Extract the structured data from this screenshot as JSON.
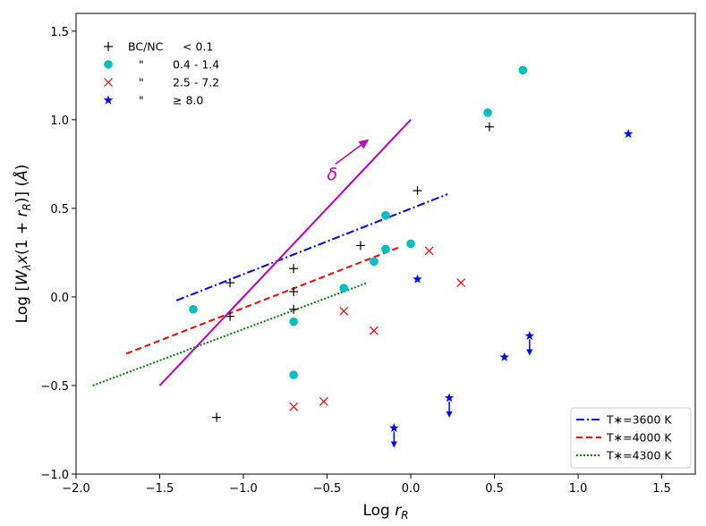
{
  "chart_data": {
    "type": "scatter",
    "xlabel": "Log r_R",
    "ylabel": "Log [W_λx(1 + r_R)] (Å)",
    "xlim": [
      -2.0,
      1.7
    ],
    "ylim": [
      -1.0,
      1.6
    ],
    "xticks": [
      "−2.0",
      "−1.5",
      "−1.0",
      "−0.5",
      "0.0",
      "0.5",
      "1.0",
      "1.5"
    ],
    "yticks": [
      "−1.0",
      "−0.5",
      "0.0",
      "0.5",
      "1.0",
      "1.5"
    ],
    "xtick_values": [
      -2.0,
      -1.5,
      -1.0,
      -0.5,
      0.0,
      0.5,
      1.0,
      1.5
    ],
    "ytick_values": [
      -1.0,
      -0.5,
      0.0,
      0.5,
      1.0,
      1.5
    ],
    "scatter_legend": [
      {
        "marker": "plus",
        "color": "#000000",
        "col1": "BC/NC",
        "col2": "< 0.1"
      },
      {
        "marker": "circle",
        "color": "#00bfbf",
        "col1": "\"",
        "col2": "0.4 - 1.4"
      },
      {
        "marker": "x",
        "color": "#ff0000",
        "col1": "\"",
        "col2": "2.5 - 7.2"
      },
      {
        "marker": "star",
        "color": "#0000ff",
        "col1": "\"",
        "col2": "≥ 8.0"
      }
    ],
    "series": [
      {
        "name": "BC/NC < 0.1",
        "marker": "plus",
        "color": "#000000",
        "points": [
          [
            -1.08,
            0.08
          ],
          [
            -1.08,
            -0.11
          ],
          [
            -0.7,
            0.16
          ],
          [
            -0.7,
            0.03
          ],
          [
            -0.7,
            -0.07
          ],
          [
            -0.3,
            0.29
          ],
          [
            0.04,
            0.6
          ],
          [
            0.47,
            0.96
          ],
          [
            -1.16,
            -0.68
          ]
        ]
      },
      {
        "name": "BC/NC 0.4 - 1.4",
        "marker": "circle",
        "color": "#00bfbf",
        "points": [
          [
            -1.3,
            -0.07
          ],
          [
            -0.7,
            -0.14
          ],
          [
            -0.7,
            -0.44
          ],
          [
            -0.4,
            0.05
          ],
          [
            -0.22,
            0.2
          ],
          [
            -0.15,
            0.46
          ],
          [
            -0.15,
            0.27
          ],
          [
            0.0,
            0.3
          ],
          [
            0.46,
            1.04
          ],
          [
            0.67,
            1.28
          ]
        ]
      },
      {
        "name": "BC/NC 2.5 - 7.2",
        "marker": "x",
        "color": "#ff0000",
        "points": [
          [
            -0.7,
            -0.62
          ],
          [
            -0.52,
            -0.59
          ],
          [
            -0.4,
            -0.08
          ],
          [
            -0.22,
            -0.19
          ],
          [
            0.11,
            0.26
          ],
          [
            0.3,
            0.08
          ]
        ]
      },
      {
        "name": "BC/NC ≥ 8.0",
        "marker": "star",
        "color": "#0000ff",
        "points": [
          [
            0.04,
            0.1
          ],
          [
            1.3,
            0.92
          ],
          [
            0.56,
            -0.34
          ],
          [
            0.71,
            -0.22
          ],
          [
            0.23,
            -0.57
          ],
          [
            -0.1,
            -0.74
          ]
        ],
        "upper_limit_arrows": [
          [
            0.71,
            -0.22
          ],
          [
            0.23,
            -0.57
          ],
          [
            -0.1,
            -0.74
          ]
        ]
      }
    ],
    "lines": [
      {
        "name": "T*=3600 K",
        "legend": "T∗=3600 K",
        "style": "dashdot",
        "color": "#0000ff",
        "x": [
          -1.4,
          0.22
        ],
        "y": [
          -0.02,
          0.58
        ]
      },
      {
        "name": "T*=4000 K",
        "legend": "T∗=4000 K",
        "style": "dashed",
        "color": "#ff0000",
        "x": [
          -1.7,
          -0.07
        ],
        "y": [
          -0.32,
          0.28
        ]
      },
      {
        "name": "T*=4300 K",
        "legend": "T∗=4300 K",
        "style": "dotted",
        "color": "#008000",
        "x": [
          -1.9,
          -0.26
        ],
        "y": [
          -0.5,
          0.08
        ]
      }
    ],
    "delta_line": {
      "color": "#bf00bf",
      "x": [
        -1.5,
        0.0
      ],
      "y": [
        -0.5,
        1.0
      ]
    },
    "delta_arrow": {
      "label": "δ",
      "color": "#bf00bf",
      "from": [
        -0.45,
        0.75
      ],
      "to": [
        -0.25,
        0.89
      ],
      "label_pos": [
        -0.5,
        0.66
      ]
    }
  }
}
